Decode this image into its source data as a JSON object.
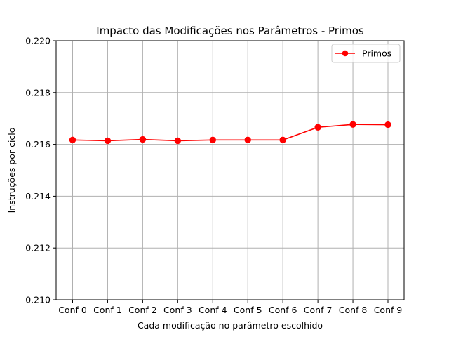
{
  "chart_data": {
    "type": "line",
    "title": "Impacto das Modificações nos Parâmetros - Primos",
    "xlabel": "Cada modificação no parâmetro escolhido",
    "ylabel": "Instruções por ciclo",
    "categories": [
      "Conf 0",
      "Conf 1",
      "Conf 2",
      "Conf 3",
      "Conf 4",
      "Conf 5",
      "Conf 6",
      "Conf 7",
      "Conf 8",
      "Conf 9"
    ],
    "series": [
      {
        "name": "Primos",
        "color": "#ff0000",
        "marker": "circle",
        "values": [
          0.21617,
          0.21614,
          0.21619,
          0.21614,
          0.21617,
          0.21617,
          0.21617,
          0.21666,
          0.21677,
          0.21676
        ]
      }
    ],
    "ylim": [
      0.21,
      0.22
    ],
    "yticks": [
      0.21,
      0.212,
      0.214,
      0.216,
      0.218,
      0.22
    ],
    "ytick_labels": [
      "0.210",
      "0.212",
      "0.214",
      "0.216",
      "0.218",
      "0.220"
    ],
    "grid": true,
    "grid_color": "#b0b0b0",
    "legend_position": "top-right"
  }
}
